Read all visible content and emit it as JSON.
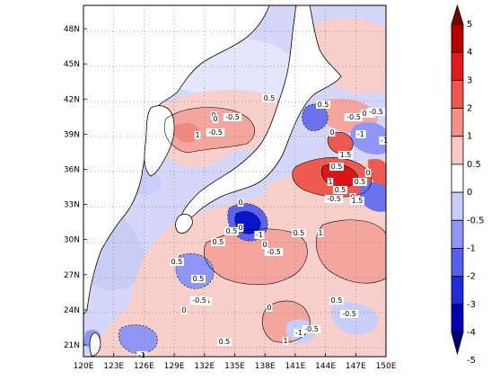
{
  "map": {
    "lon_range": [
      120,
      150
    ],
    "lat_range": [
      20,
      50
    ],
    "lon_ticks": [
      "120E",
      "123E",
      "126E",
      "129E",
      "132E",
      "135E",
      "138E",
      "141E",
      "144E",
      "147E",
      "150E"
    ],
    "lat_ticks": [
      "21N",
      "24N",
      "27N",
      "30N",
      "33N",
      "36N",
      "39N",
      "42N",
      "45N",
      "48N"
    ],
    "grid": "dotted",
    "contour_labels": [
      "0",
      "0.5",
      "-0.5",
      "0",
      "-1",
      "0.5",
      "0",
      "-0.5",
      "0.5",
      "1",
      "-0.5",
      "0",
      "0.5",
      "0",
      "0.5",
      "1",
      "1.5",
      "0.5",
      "-1",
      "-0.5",
      "0.5",
      "-0.5",
      "0",
      "-1",
      "0.5",
      "0.5",
      "-0.5",
      "0",
      "1",
      "0",
      "-0.5",
      "0.5",
      "0.5",
      "-0.5",
      "0",
      "-1",
      "0.5",
      "1",
      "-0.5",
      "0.5",
      "-0.5",
      "1.5",
      "0",
      "-1"
    ]
  },
  "colorbar": {
    "labels": [
      "5",
      "4",
      "3",
      "2",
      "1",
      "0.5",
      "0",
      "-0.5",
      "-1",
      "-2",
      "-3",
      "-4",
      "-5"
    ],
    "colors": [
      "#7a0000",
      "#b80000",
      "#e3191c",
      "#f0584f",
      "#f58f86",
      "#fac8c2",
      "#ffffff",
      "#c8cdfa",
      "#8f96f5",
      "#5760ee",
      "#1f2ad8",
      "#0000b0",
      "#000078"
    ]
  }
}
